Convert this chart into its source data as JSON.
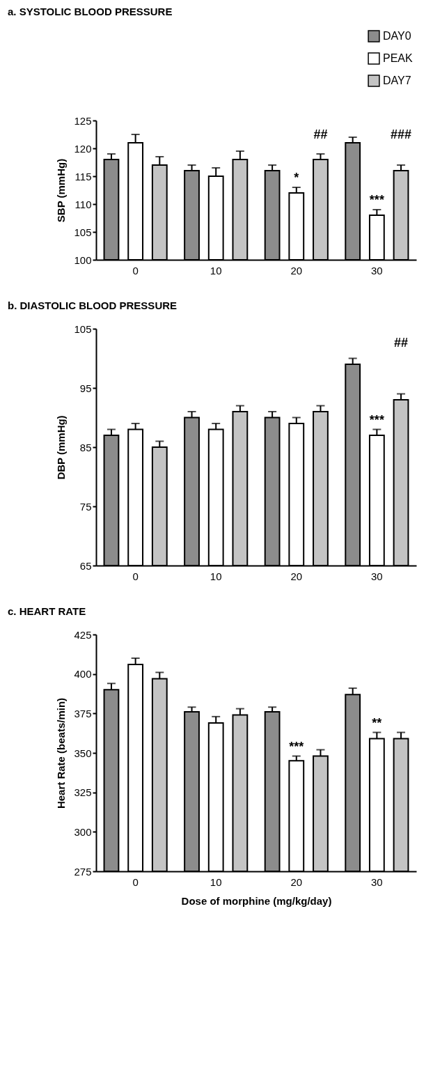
{
  "chart_data": [
    {
      "type": "bar",
      "title": "a.      SYSTOLIC BLOOD PRESSURE",
      "ylabel": "SBP (mmHg)",
      "categories": [
        "0",
        "10",
        "20",
        "30"
      ],
      "legend": "top right",
      "series": [
        {
          "name": "DAY0",
          "color": "#8c8c8c",
          "values": [
            118,
            116,
            116,
            121
          ],
          "errors": [
            1,
            1,
            1,
            1
          ]
        },
        {
          "name": "PEAK",
          "color": "#ffffff",
          "values": [
            121,
            115,
            112,
            108
          ],
          "errors": [
            1.5,
            1.5,
            1,
            1
          ]
        },
        {
          "name": "DAY7",
          "color": "#c4c4c4",
          "values": [
            117,
            118,
            118,
            116
          ],
          "errors": [
            1.5,
            1.5,
            1,
            1
          ]
        }
      ],
      "ylim": [
        100,
        125
      ],
      "yticks": [
        100,
        105,
        110,
        115,
        120,
        125
      ],
      "annotations": [
        "##",
        "###",
        {
          "text": "*",
          "x": "20",
          "y": 113
        },
        {
          "text": "***",
          "x": "30",
          "y": 109
        }
      ]
    },
    {
      "type": "bar",
      "title": "b.      DIASTOLIC BLOOD PRESSURE",
      "ylabel": "DBP (mmHg)",
      "categories": [
        "0",
        "10",
        "20",
        "30"
      ],
      "series": [
        {
          "color": "#8c8c8c",
          "values": [
            87,
            90,
            90,
            99
          ],
          "errors": [
            1,
            1,
            1,
            1
          ]
        },
        {
          "color": "#ffffff",
          "values": [
            88,
            88,
            89,
            87
          ],
          "errors": [
            1,
            1,
            1,
            1
          ]
        },
        {
          "color": "#c4c4c4",
          "values": [
            85,
            91,
            91,
            93
          ],
          "errors": [
            1,
            1,
            1,
            1
          ]
        }
      ],
      "ylim": [
        65,
        105
      ],
      "yticks": [
        65,
        75,
        85,
        95,
        105
      ],
      "annotations": [
        "##",
        {
          "text": "***",
          "x": "30",
          "y": 88
        }
      ]
    },
    {
      "type": "bar",
      "title": "c.      HEART RATE",
      "ylabel": "Heart Rate (beats/min)",
      "xlabel": "Dose of morphine (mg/kg/day)",
      "categories": [
        "0",
        "10",
        "20",
        "30"
      ],
      "series": [
        {
          "color": "#8c8c8c",
          "values": [
            390,
            376,
            376,
            387
          ],
          "errors": [
            4,
            3,
            3,
            4
          ]
        },
        {
          "color": "#ffffff",
          "values": [
            406,
            369,
            345,
            359
          ],
          "errors": [
            4,
            4,
            3,
            4
          ]
        },
        {
          "color": "#c4c4c4",
          "values": [
            397,
            374,
            348,
            359
          ],
          "errors": [
            4,
            4,
            4,
            4
          ]
        }
      ],
      "ylim": [
        275,
        425
      ],
      "yticks": [
        275,
        300,
        325,
        350,
        375,
        400,
        425
      ],
      "annotations": [
        {
          "text": "***",
          "x": "20",
          "y": 348
        },
        {
          "text": "**",
          "x": "30",
          "y": 363
        }
      ]
    }
  ]
}
